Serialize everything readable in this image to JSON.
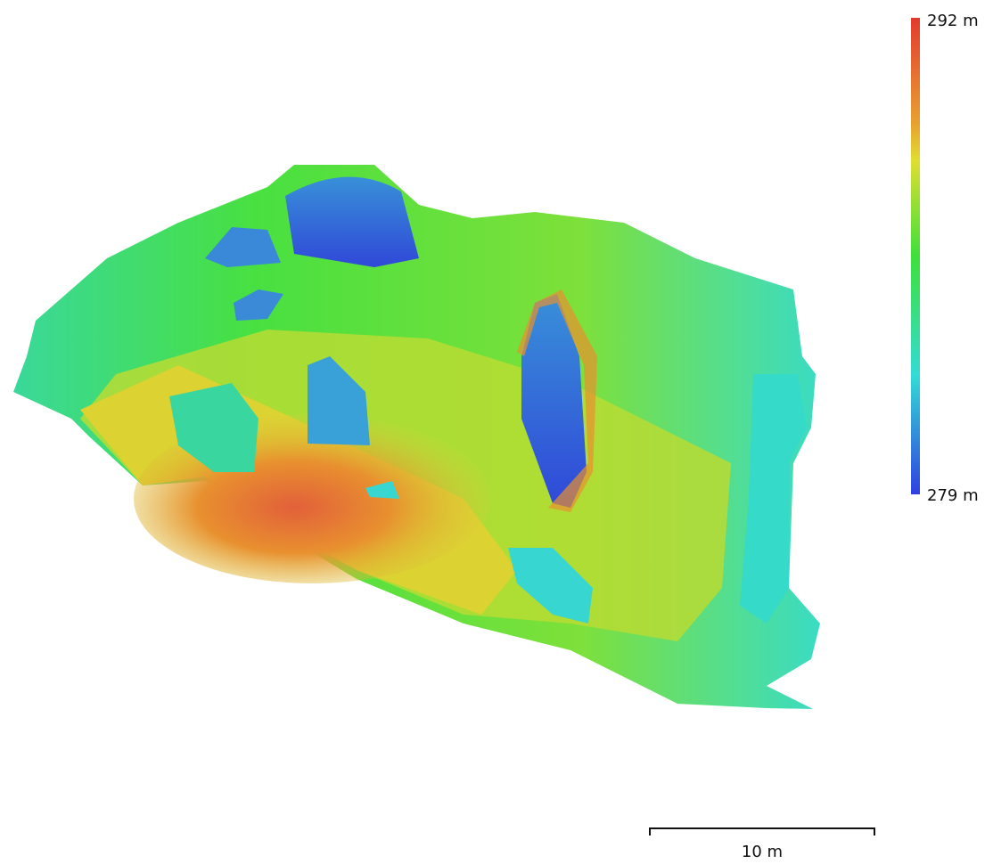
{
  "legend": {
    "max_label": "292 m",
    "min_label": "279 m"
  },
  "scale_bar": {
    "label": "10 m"
  }
}
